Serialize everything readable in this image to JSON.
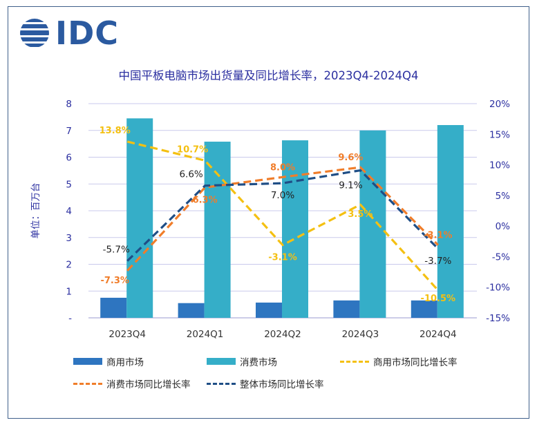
{
  "logo": {
    "text": "IDC",
    "icon": "idc-globe-logo-icon",
    "color": "#2b5aa0"
  },
  "chart_data": {
    "type": "bar",
    "title": "中国平板电脑市场出货量及同比增长率，2023Q4-2024Q4",
    "categories": [
      "2023Q4",
      "2024Q1",
      "2024Q2",
      "2024Q3",
      "2024Q4"
    ],
    "ylabel": "单位：百万台",
    "ylim": [
      0,
      8
    ],
    "y_ticks": [
      "-",
      "1",
      "2",
      "3",
      "4",
      "5",
      "6",
      "7",
      "8"
    ],
    "y2lim": [
      -15,
      20
    ],
    "y2_ticks": [
      "-15%",
      "-10%",
      "-5%",
      "0%",
      "5%",
      "10%",
      "15%",
      "20%"
    ],
    "grid": true,
    "legend_position": "bottom",
    "series": [
      {
        "name": "商用市场",
        "kind": "bar",
        "axis": "left",
        "color": "#2e75c0",
        "values": [
          0.75,
          0.55,
          0.57,
          0.65,
          0.65
        ]
      },
      {
        "name": "消费市场",
        "kind": "bar",
        "axis": "left",
        "color": "#35aec8",
        "values": [
          7.45,
          6.58,
          6.63,
          7.0,
          7.2
        ]
      },
      {
        "name": "商用市场同比增长率",
        "kind": "line",
        "axis": "right",
        "color": "#f4c012",
        "values": [
          13.8,
          10.7,
          -3.1,
          3.5,
          -10.5
        ],
        "labels": [
          "13.8%",
          "10.7%",
          "-3.1%",
          "3.5%",
          "-10.5%"
        ]
      },
      {
        "name": "消费市场同比增长率",
        "kind": "line",
        "axis": "right",
        "color": "#f07d2a",
        "values": [
          -7.3,
          6.3,
          8.0,
          9.6,
          -3.1
        ],
        "labels": [
          "-7.3%",
          "6.3%",
          "8.0%",
          "9.6%",
          "-3.1%"
        ]
      },
      {
        "name": "整体市场同比增长率",
        "kind": "line",
        "axis": "right",
        "color": "#1f4e86",
        "values": [
          -5.7,
          6.6,
          7.0,
          9.1,
          -3.7
        ],
        "labels": [
          "-5.7%",
          "6.6%",
          "7.0%",
          "9.1%",
          "-3.7%"
        ]
      }
    ]
  }
}
